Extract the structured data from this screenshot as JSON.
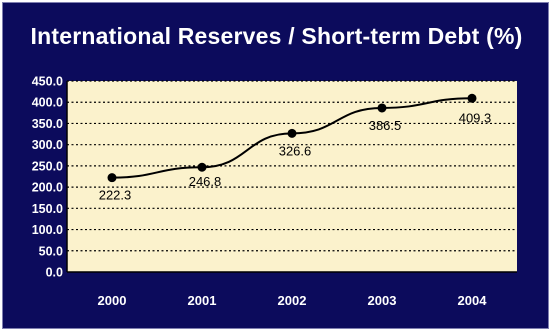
{
  "chart_data": {
    "type": "line",
    "title": "International Reserves / Short-term Debt (%)",
    "xlabel": "",
    "ylabel": "",
    "categories": [
      "2000",
      "2001",
      "2002",
      "2003",
      "2004"
    ],
    "series": [
      {
        "values": [
          222.3,
          246.8,
          326.6,
          386.5,
          409.3
        ]
      }
    ],
    "data_labels": [
      "222.3",
      "246.8",
      "326.6",
      "386.5",
      "409.3"
    ],
    "yticks": [
      "0.0",
      "50.0",
      "100.0",
      "150.0",
      "200.0",
      "250.0",
      "300.0",
      "350.0",
      "400.0",
      "450.0"
    ],
    "ylim": [
      0,
      450
    ],
    "grid": true,
    "colors": {
      "background": "#0c0b5c",
      "plot_area": "#fbf2cc",
      "line": "#000000",
      "text": "#ffffff"
    }
  }
}
